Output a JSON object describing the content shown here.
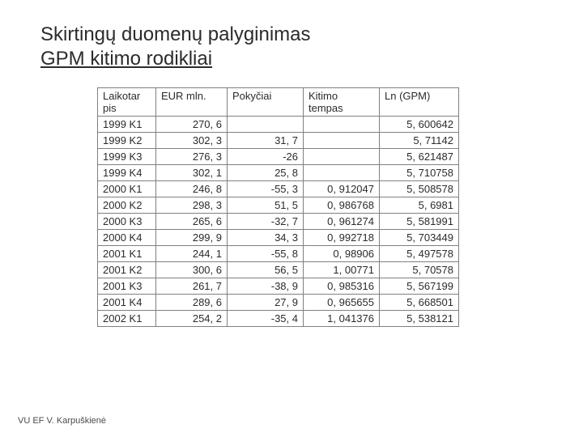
{
  "title_line1": "Skirtingų duomenų palyginimas",
  "title_line2": "GPM kitimo rodikliai",
  "footer": "VU EF V. Karpuškienė",
  "table": {
    "columns": [
      "Laikotar pis",
      "EUR mln.",
      "Pokyčiai",
      "Kitimo tempas",
      "Ln (GPM)"
    ],
    "rows": [
      [
        "1999 K1",
        "270, 6",
        "",
        "",
        "5, 600642"
      ],
      [
        "1999 K2",
        "302, 3",
        "31, 7",
        "",
        "5, 71142"
      ],
      [
        "1999 K3",
        "276, 3",
        "-26",
        "",
        "5, 621487"
      ],
      [
        "1999 K4",
        "302, 1",
        "25, 8",
        "",
        "5, 710758"
      ],
      [
        "2000 K1",
        "246, 8",
        "-55, 3",
        "0, 912047",
        "5, 508578"
      ],
      [
        "2000 K2",
        "298, 3",
        "51, 5",
        "0, 986768",
        "5, 6981"
      ],
      [
        "2000 K3",
        "265, 6",
        "-32, 7",
        "0, 961274",
        "5, 581991"
      ],
      [
        "2000 K4",
        "299, 9",
        "34, 3",
        "0, 992718",
        "5, 703449"
      ],
      [
        "2001 K1",
        "244, 1",
        "-55, 8",
        "0, 98906",
        "5, 497578"
      ],
      [
        "2001 K2",
        "300, 6",
        "56, 5",
        "1, 00771",
        "5, 70578"
      ],
      [
        "2001 K3",
        "261, 7",
        "-38, 9",
        "0, 985316",
        "5, 567199"
      ],
      [
        "2001 K4",
        "289, 6",
        "27, 9",
        "0, 965655",
        "5, 668501"
      ],
      [
        "2002 K1",
        "254, 2",
        "-35, 4",
        "1, 041376",
        "5, 538121"
      ]
    ]
  }
}
